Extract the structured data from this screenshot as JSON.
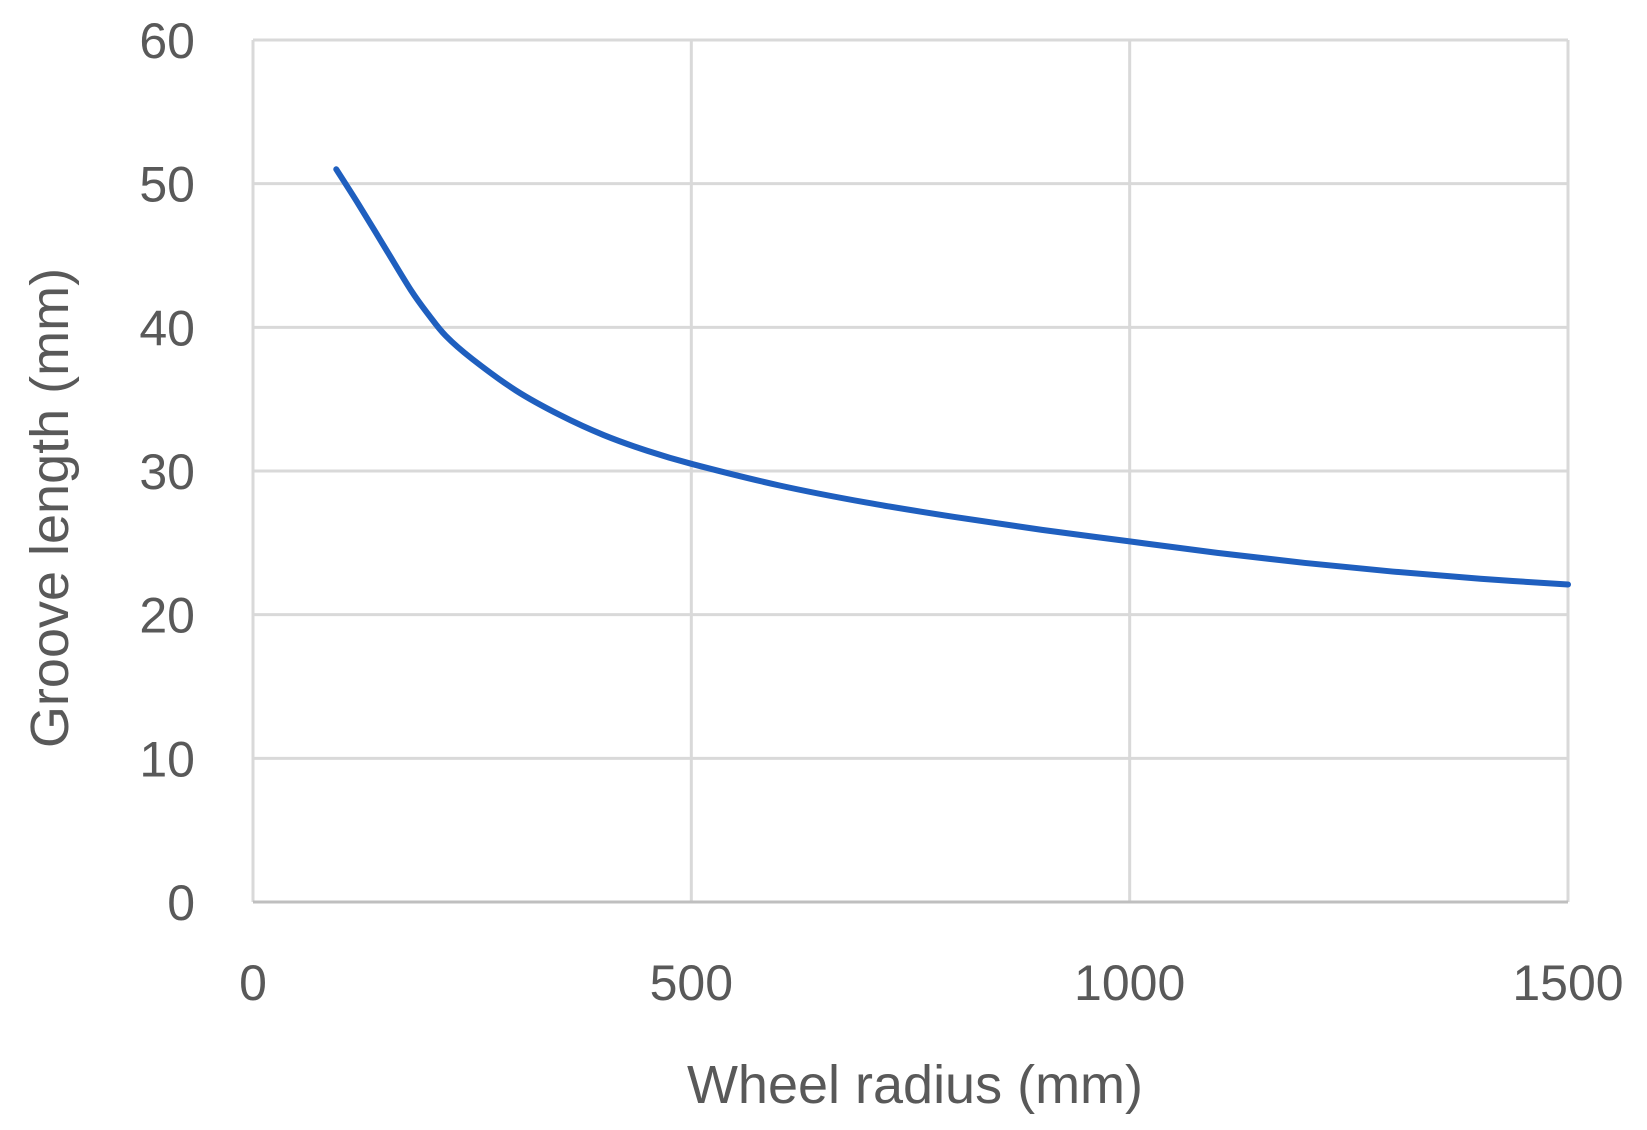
{
  "chart_data": {
    "type": "line",
    "xlabel": "Wheel radius (mm)",
    "ylabel": "Groove length (mm)",
    "xlim": [
      0,
      1500
    ],
    "ylim": [
      0,
      60
    ],
    "xticks": [
      "0",
      "500",
      "1000",
      "1500"
    ],
    "yticks": [
      "0",
      "10",
      "20",
      "30",
      "40",
      "50",
      "60"
    ],
    "grid": true,
    "legend": "none",
    "series": [
      {
        "color": "#1f5fbf",
        "x": [
          95,
          120,
          150,
          180,
          200,
          220,
          250,
          300,
          350,
          400,
          450,
          500,
          600,
          700,
          800,
          900,
          1000,
          1100,
          1200,
          1300,
          1400,
          1500
        ],
        "y": [
          51.0,
          48.6,
          45.6,
          42.6,
          40.9,
          39.4,
          37.8,
          35.6,
          33.9,
          32.5,
          31.4,
          30.5,
          29.0,
          27.8,
          26.8,
          25.9,
          25.1,
          24.3,
          23.6,
          23.0,
          22.5,
          22.1
        ]
      }
    ]
  }
}
